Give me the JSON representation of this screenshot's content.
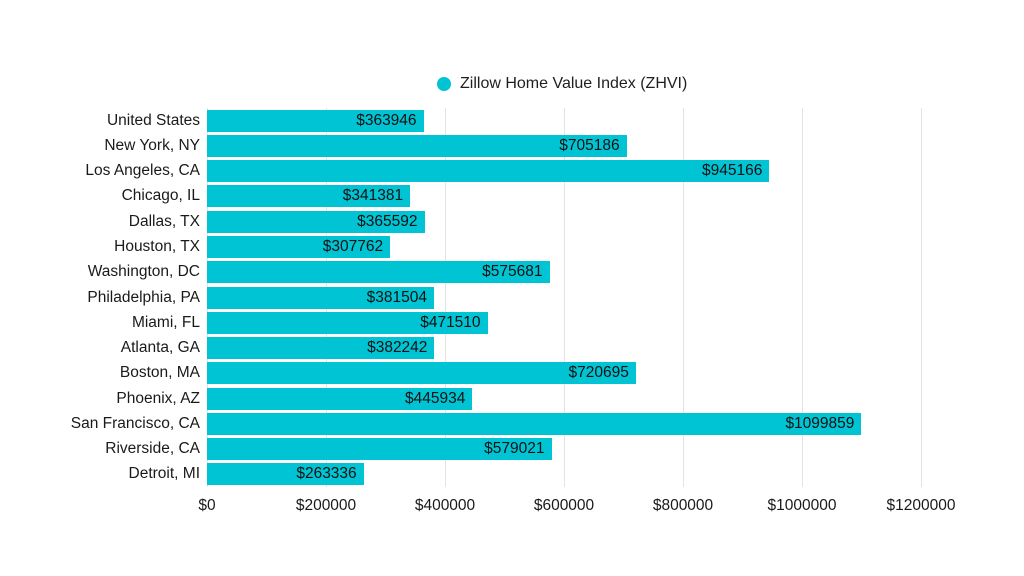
{
  "legend": {
    "label": "Zillow Home Value Index (ZHVI)"
  },
  "colors": {
    "bar": "#00c4d4",
    "grid": "#e3e3e3",
    "value_text": "#111111",
    "axis_text": "#1a1a1a"
  },
  "chart_data": {
    "type": "bar",
    "orientation": "horizontal",
    "title": "",
    "series_name": "Zillow Home Value Index (ZHVI)",
    "categories": [
      "United States",
      "New York, NY",
      "Los Angeles, CA",
      "Chicago, IL",
      "Dallas, TX",
      "Houston, TX",
      "Washington, DC",
      "Philadelphia, PA",
      "Miami, FL",
      "Atlanta, GA",
      "Boston, MA",
      "Phoenix, AZ",
      "San Francisco, CA",
      "Riverside, CA",
      "Detroit, MI"
    ],
    "values": [
      363946,
      705186,
      945166,
      341381,
      365592,
      307762,
      575681,
      381504,
      471510,
      382242,
      720695,
      445934,
      1099859,
      579021,
      263336
    ],
    "value_prefix": "$",
    "xlabel": "",
    "ylabel": "",
    "xlim": [
      0,
      1200000
    ],
    "x_ticks": [
      0,
      200000,
      400000,
      600000,
      800000,
      1000000,
      1200000
    ],
    "x_tick_labels": [
      "$0",
      "$200000",
      "$400000",
      "$600000",
      "$800000",
      "$1000000",
      "$1200000"
    ],
    "grid": true,
    "legend_position": "top",
    "value_labels": "inside-end"
  }
}
